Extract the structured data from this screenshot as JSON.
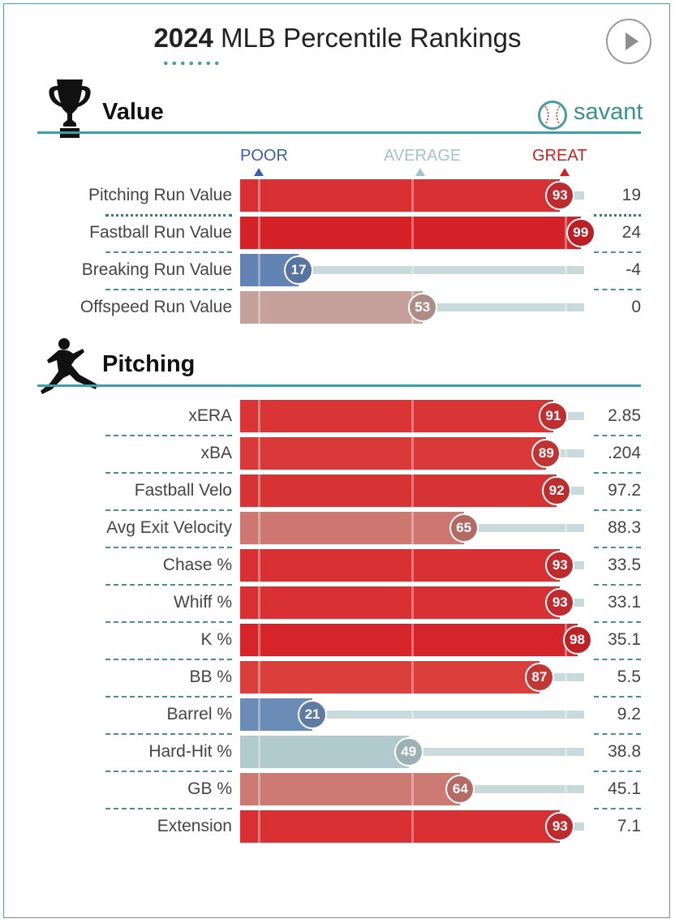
{
  "title": {
    "year": "2024",
    "text": "MLB Percentile Rankings"
  },
  "brand": {
    "name": "savant"
  },
  "scale": {
    "poor": "POOR",
    "average": "AVERAGE",
    "great": "GREAT"
  },
  "colors": {
    "accent": "#4a9aa0",
    "track": "#c8dadb",
    "poor": "#3a5ea8",
    "average": "#a6c4c6",
    "great": "#cc2222"
  },
  "chart_data": {
    "type": "bar",
    "title": "2024 MLB Percentile Rankings",
    "xlim": [
      0,
      100
    ],
    "sections": [
      {
        "name": "Value",
        "icon": "trophy-icon",
        "metrics": [
          {
            "label": "Pitching Run Value",
            "percentile": 93,
            "value": "19"
          },
          {
            "label": "Fastball Run Value",
            "percentile": 99,
            "value": "24"
          },
          {
            "label": "Breaking Run Value",
            "percentile": 17,
            "value": "-4"
          },
          {
            "label": "Offspeed Run Value",
            "percentile": 53,
            "value": "0"
          }
        ]
      },
      {
        "name": "Pitching",
        "icon": "pitcher-icon",
        "metrics": [
          {
            "label": "xERA",
            "percentile": 91,
            "value": "2.85"
          },
          {
            "label": "xBA",
            "percentile": 89,
            "value": ".204"
          },
          {
            "label": "Fastball Velo",
            "percentile": 92,
            "value": "97.2"
          },
          {
            "label": "Avg Exit Velocity",
            "percentile": 65,
            "value": "88.3"
          },
          {
            "label": "Chase %",
            "percentile": 93,
            "value": "33.5"
          },
          {
            "label": "Whiff %",
            "percentile": 93,
            "value": "33.1"
          },
          {
            "label": "K %",
            "percentile": 98,
            "value": "35.1"
          },
          {
            "label": "BB %",
            "percentile": 87,
            "value": "5.5"
          },
          {
            "label": "Barrel %",
            "percentile": 21,
            "value": "9.2"
          },
          {
            "label": "Hard-Hit %",
            "percentile": 49,
            "value": "38.8"
          },
          {
            "label": "GB %",
            "percentile": 64,
            "value": "45.1"
          },
          {
            "label": "Extension",
            "percentile": 93,
            "value": "7.1"
          }
        ]
      }
    ]
  }
}
